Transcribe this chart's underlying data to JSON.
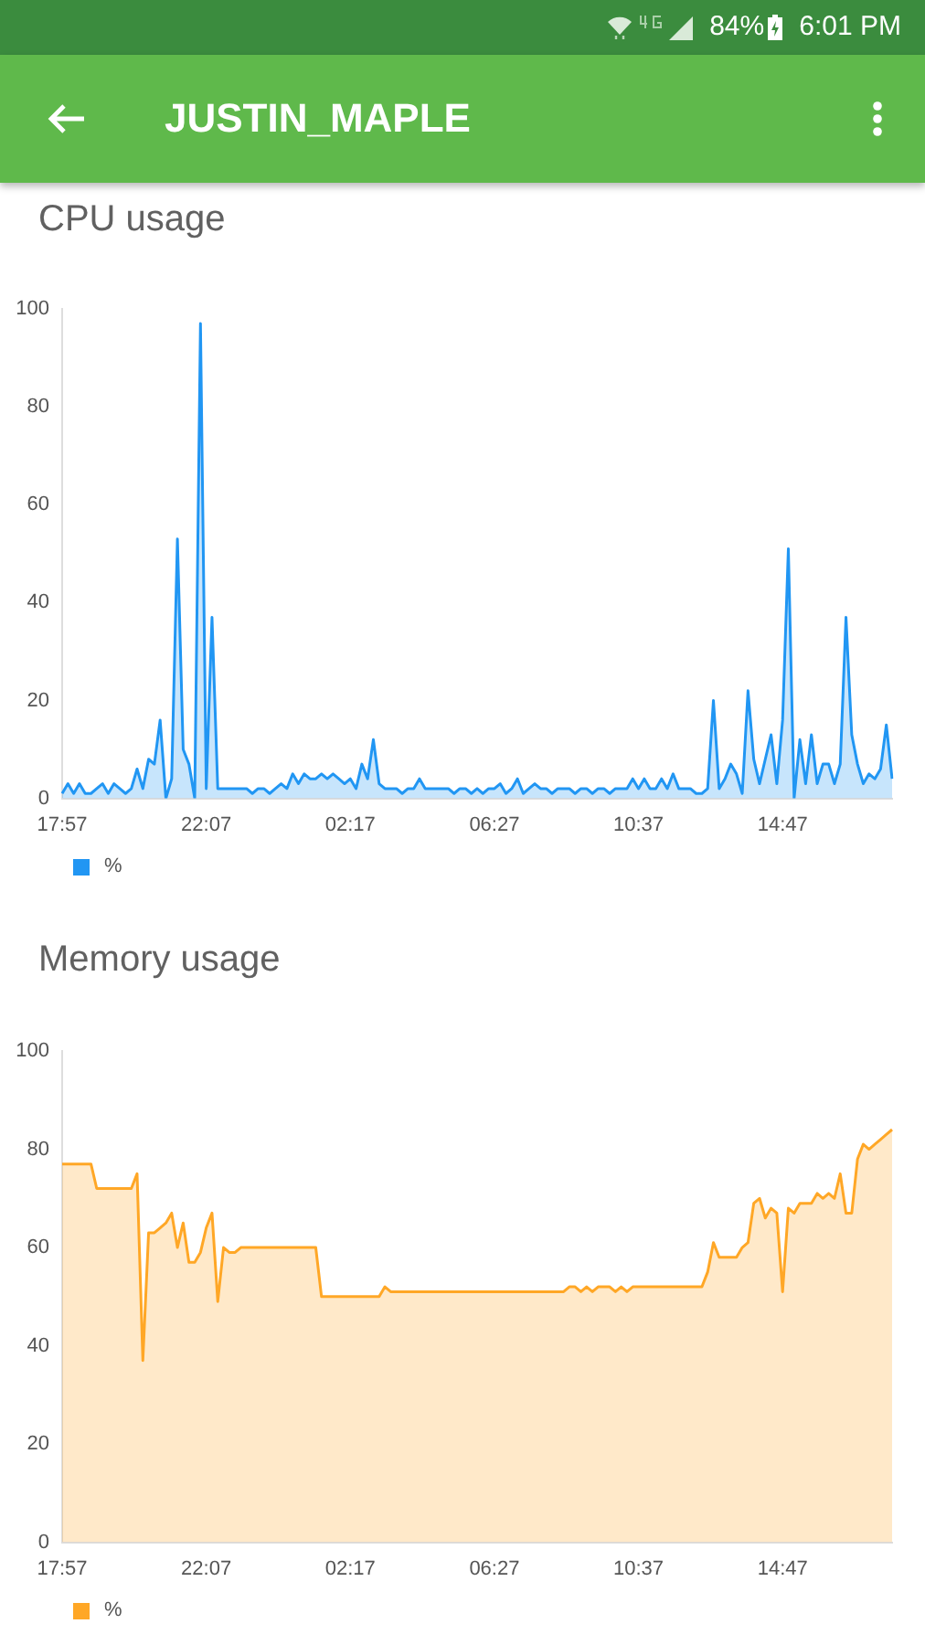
{
  "chart_data": [
    {
      "type": "other",
      "title": "JUSTIN_MAPLE",
      "annotations": [
        "84%",
        "6:01 PM"
      ]
    },
    {
      "type": "area",
      "title": "CPU usage",
      "categories": [
        "17:57",
        null,
        null,
        null,
        null,
        null,
        null,
        null,
        null,
        null,
        null,
        null,
        null,
        null,
        null,
        null,
        null,
        null,
        null,
        null,
        null,
        null,
        null,
        null,
        null,
        "22:07",
        null,
        null,
        null,
        null,
        null,
        null,
        null,
        null,
        null,
        null,
        null,
        null,
        null,
        null,
        null,
        null,
        null,
        null,
        null,
        null,
        null,
        null,
        null,
        null,
        "02:17",
        null,
        null,
        null,
        null,
        null,
        null,
        null,
        null,
        null,
        null,
        null,
        null,
        null,
        null,
        null,
        null,
        null,
        null,
        null,
        null,
        null,
        null,
        null,
        null,
        "06:27",
        null,
        null,
        null,
        null,
        null,
        null,
        null,
        null,
        null,
        null,
        null,
        null,
        null,
        null,
        null,
        null,
        null,
        null,
        null,
        null,
        null,
        null,
        null,
        null,
        "10:37",
        null,
        null,
        null,
        null,
        null,
        null,
        null,
        null,
        null,
        null,
        null,
        null,
        null,
        null,
        null,
        null,
        null,
        null,
        null,
        null,
        null,
        null,
        null,
        null,
        "14:47",
        null,
        null,
        null,
        null,
        null,
        null,
        null,
        null,
        null,
        null,
        null,
        null,
        null,
        null,
        null,
        null,
        null,
        null,
        null
      ],
      "series": [
        {
          "name": "%",
          "color": "#2196f3",
          "values": [
            1,
            3,
            1,
            3,
            1,
            1,
            2,
            3,
            1,
            3,
            2,
            1,
            2,
            6,
            2,
            8,
            7,
            16,
            0,
            4,
            53,
            10,
            7,
            0,
            97,
            2,
            37,
            2,
            2,
            2,
            2,
            2,
            2,
            1,
            2,
            2,
            1,
            2,
            3,
            2,
            5,
            3,
            5,
            4,
            4,
            5,
            4,
            5,
            4,
            3,
            4,
            2,
            7,
            4,
            12,
            3,
            2,
            2,
            2,
            1,
            2,
            2,
            4,
            2,
            2,
            2,
            2,
            2,
            1,
            2,
            2,
            1,
            2,
            1,
            2,
            2,
            3,
            1,
            2,
            4,
            1,
            2,
            3,
            2,
            2,
            1,
            2,
            2,
            2,
            1,
            2,
            2,
            1,
            2,
            2,
            1,
            2,
            2,
            2,
            4,
            2,
            4,
            2,
            2,
            4,
            2,
            5,
            2,
            2,
            2,
            1,
            1,
            2,
            20,
            2,
            4,
            7,
            5,
            1,
            22,
            8,
            3,
            8,
            13,
            3,
            16,
            51,
            0,
            12,
            3,
            13,
            3,
            7,
            7,
            3,
            7,
            37,
            13,
            7,
            3,
            5,
            4,
            6,
            15,
            4
          ]
        }
      ],
      "ylim": [
        0,
        100
      ],
      "yticks": [
        0,
        20,
        40,
        60,
        80,
        100
      ],
      "grid": false,
      "legend": "bottom left",
      "marker": "none",
      "line_style": "solid"
    },
    {
      "type": "area",
      "title": "Memory usage",
      "categories": [
        "17:57",
        null,
        null,
        null,
        null,
        null,
        null,
        null,
        null,
        null,
        null,
        null,
        null,
        null,
        null,
        null,
        null,
        null,
        null,
        null,
        null,
        null,
        null,
        null,
        null,
        "22:07",
        null,
        null,
        null,
        null,
        null,
        null,
        null,
        null,
        null,
        null,
        null,
        null,
        null,
        null,
        null,
        null,
        null,
        null,
        null,
        null,
        null,
        null,
        null,
        null,
        "02:17",
        null,
        null,
        null,
        null,
        null,
        null,
        null,
        null,
        null,
        null,
        null,
        null,
        null,
        null,
        null,
        null,
        null,
        null,
        null,
        null,
        null,
        null,
        null,
        null,
        "06:27",
        null,
        null,
        null,
        null,
        null,
        null,
        null,
        null,
        null,
        null,
        null,
        null,
        null,
        null,
        null,
        null,
        null,
        null,
        null,
        null,
        null,
        null,
        null,
        null,
        "10:37",
        null,
        null,
        null,
        null,
        null,
        null,
        null,
        null,
        null,
        null,
        null,
        null,
        null,
        null,
        null,
        null,
        null,
        null,
        null,
        null,
        null,
        null,
        null,
        null,
        "14:47",
        null,
        null,
        null,
        null,
        null,
        null,
        null,
        null,
        null,
        null,
        null,
        null,
        null,
        null,
        null,
        null,
        null,
        null,
        null
      ],
      "series": [
        {
          "name": "%",
          "color": "#ffa726",
          "values": [
            77,
            77,
            77,
            77,
            77,
            77,
            72,
            72,
            72,
            72,
            72,
            72,
            72,
            75,
            37,
            63,
            63,
            64,
            65,
            67,
            60,
            65,
            57,
            57,
            59,
            64,
            67,
            49,
            60,
            59,
            59,
            60,
            60,
            60,
            60,
            60,
            60,
            60,
            60,
            60,
            60,
            60,
            60,
            60,
            60,
            50,
            50,
            50,
            50,
            50,
            50,
            50,
            50,
            50,
            50,
            50,
            52,
            51,
            51,
            51,
            51,
            51,
            51,
            51,
            51,
            51,
            51,
            51,
            51,
            51,
            51,
            51,
            51,
            51,
            51,
            51,
            51,
            51,
            51,
            51,
            51,
            51,
            51,
            51,
            51,
            51,
            51,
            51,
            52,
            52,
            51,
            52,
            51,
            52,
            52,
            52,
            51,
            52,
            51,
            52,
            52,
            52,
            52,
            52,
            52,
            52,
            52,
            52,
            52,
            52,
            52,
            52,
            55,
            61,
            58,
            58,
            58,
            58,
            60,
            61,
            69,
            70,
            66,
            68,
            67,
            51,
            68,
            67,
            69,
            69,
            69,
            71,
            70,
            71,
            70,
            75,
            67,
            67,
            78,
            81,
            80,
            81,
            82,
            83,
            84
          ]
        }
      ],
      "ylim": [
        0,
        100
      ],
      "yticks": [
        0,
        20,
        40,
        60,
        80,
        100
      ],
      "grid": false,
      "legend": "bottom left",
      "marker": "none",
      "line_style": "solid"
    }
  ]
}
